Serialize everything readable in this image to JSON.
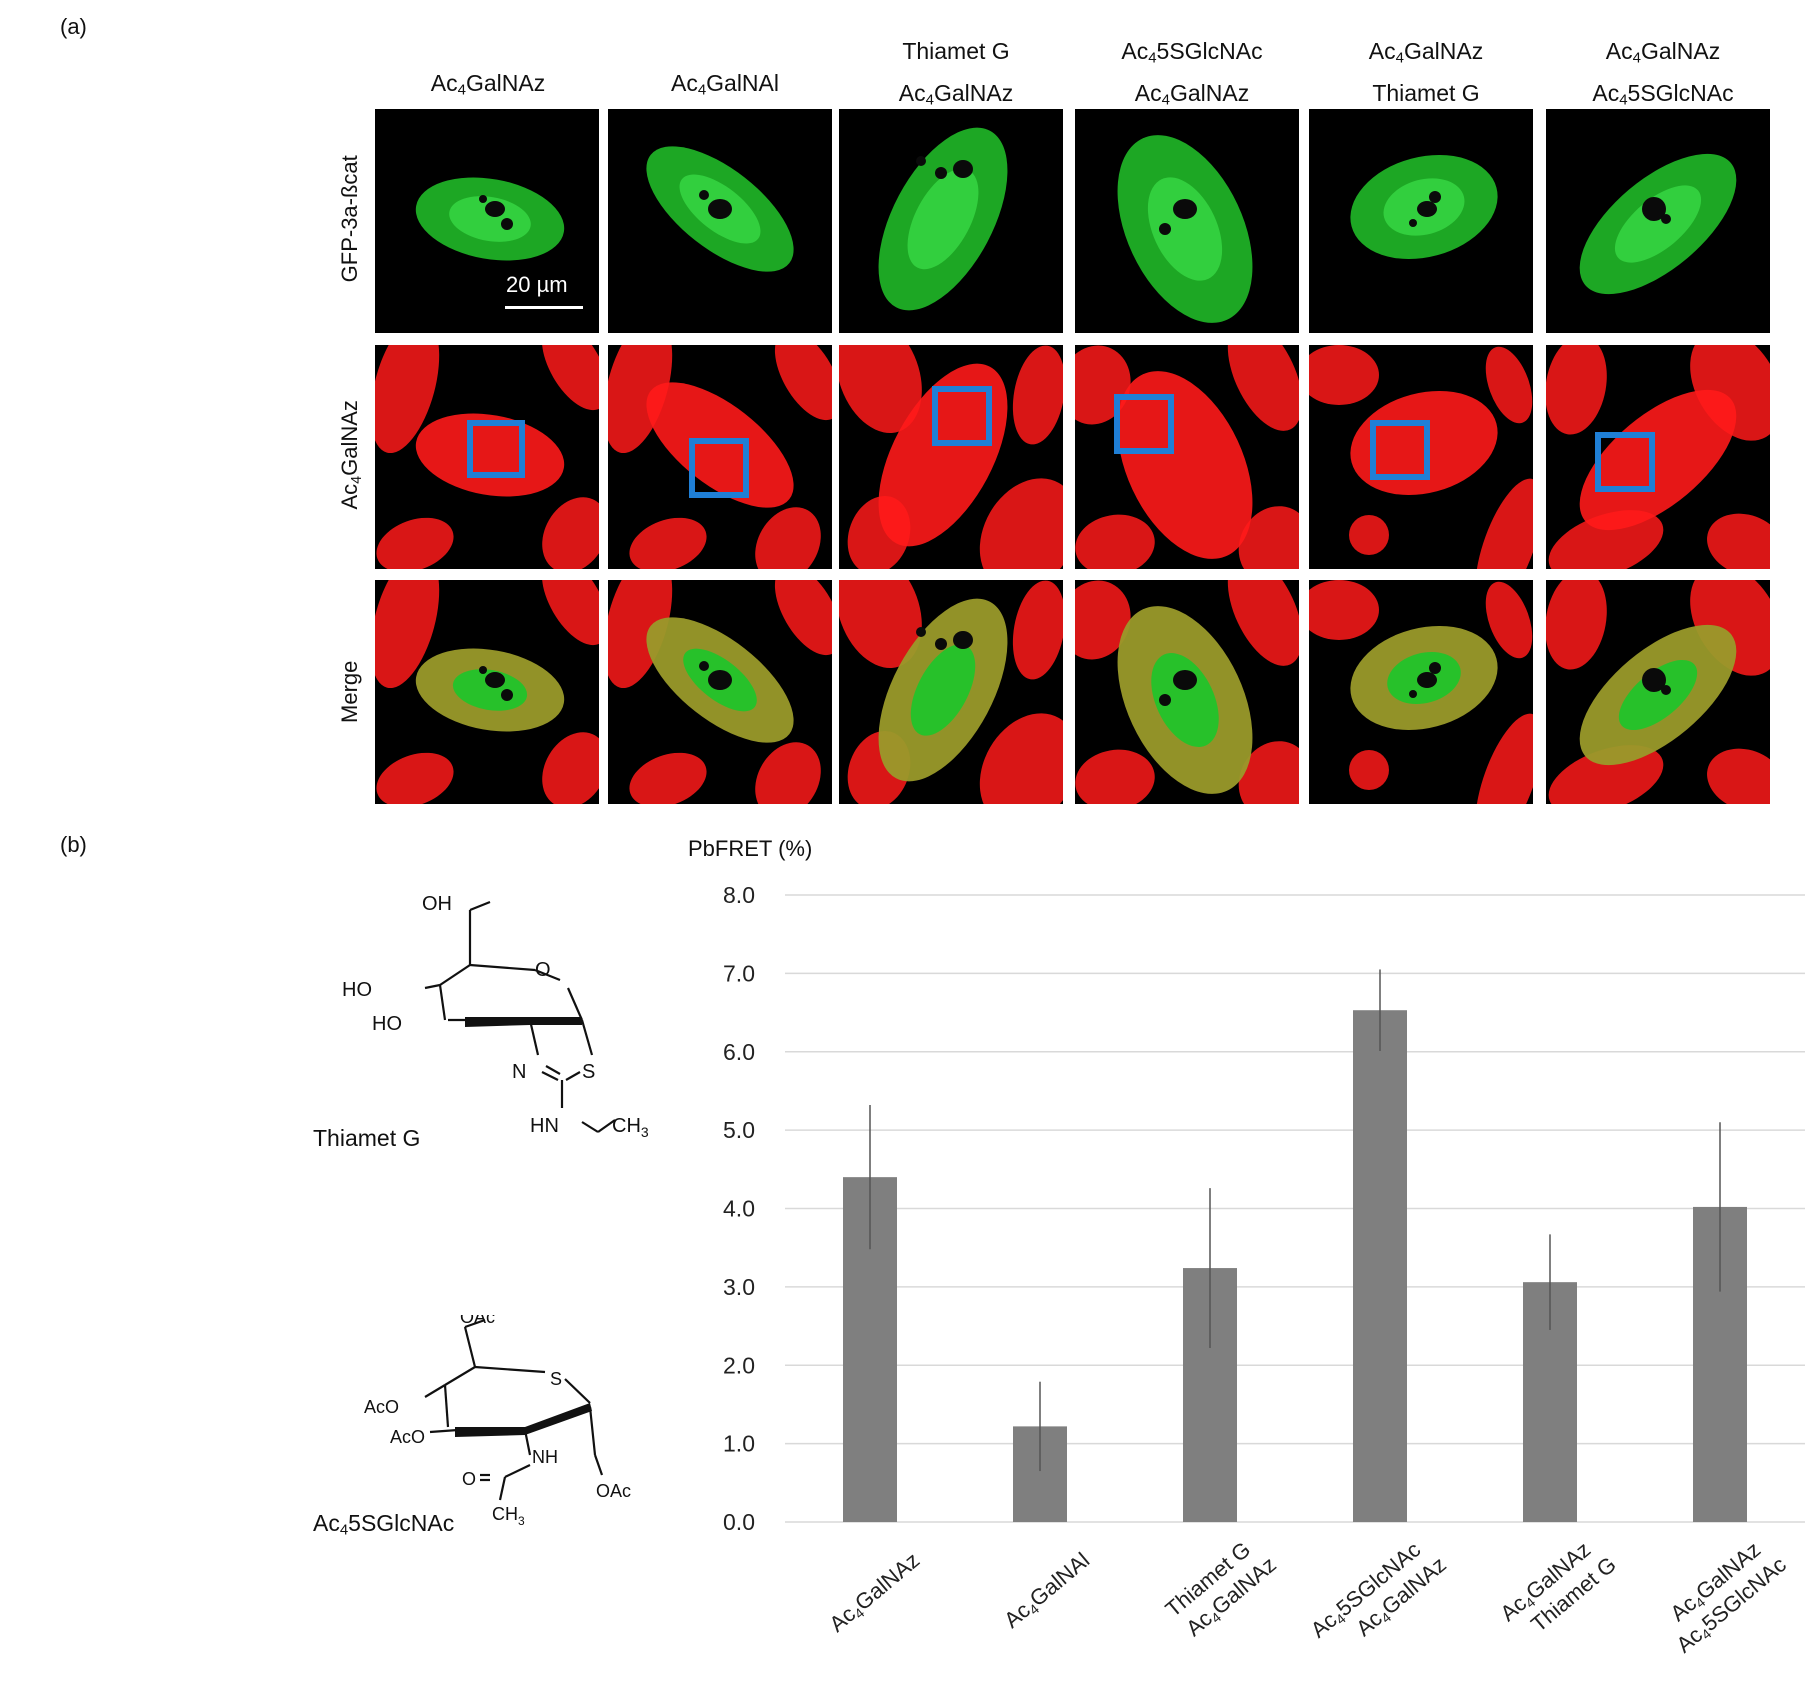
{
  "panels": {
    "a": "(a)",
    "b": "(b)"
  },
  "columns": [
    {
      "line1": "Ac",
      "line1_sub": "4",
      "line1_rest": "GalNAz",
      "line2": "",
      "line2_sub": "",
      "line2_rest": ""
    },
    {
      "line1": "Ac",
      "line1_sub": "4",
      "line1_rest": "GalNAl",
      "line2": "",
      "line2_sub": "",
      "line2_rest": ""
    },
    {
      "line1": "Thiamet G",
      "line1_sub": "",
      "line1_rest": "",
      "line2": "Ac",
      "line2_sub": "4",
      "line2_rest": "GalNAz"
    },
    {
      "line1": "Ac",
      "line1_sub": "4",
      "line1_rest": "5SGlcNAc",
      "line2": "Ac",
      "line2_sub": "4",
      "line2_rest": "GalNAz"
    },
    {
      "line1": "Ac",
      "line1_sub": "4",
      "line1_rest": "GalNAz",
      "line2": "Thiamet G",
      "line2_sub": "",
      "line2_rest": ""
    },
    {
      "line1": "Ac",
      "line1_sub": "4",
      "line1_rest": "GalNAz",
      "line2": "Ac",
      "line2_sub": "4",
      "line2_rest": "5SGlcNAc"
    }
  ],
  "rows": [
    {
      "label": "GFP-3a-ßcat",
      "label_sub": "",
      "label_rest": ""
    },
    {
      "label": "Ac",
      "label_sub": "4",
      "label_rest": "GalNAz"
    },
    {
      "label": "Merge",
      "label_sub": "",
      "label_rest": ""
    }
  ],
  "scale_bar": "20 µm",
  "structures": {
    "thiamet": {
      "name": "Thiamet G",
      "atoms": {
        "oh_top": "OH",
        "ho1": "HO",
        "ho2": "HO",
        "o_ring": "O",
        "n": "N",
        "s": "S",
        "hn": "HN",
        "ch": "CH",
        "ch_sub": "3"
      }
    },
    "ac5sglcnac": {
      "name": "Ac",
      "name_sub": "4",
      "name_rest": "5SGlcNAc",
      "atoms": {
        "oac_top": "OAc",
        "aco1": "AcO",
        "aco2": "AcO",
        "s": "S",
        "nh": "NH",
        "o": "O",
        "ch": "CH",
        "ch_sub": "3",
        "oac_bottom": "OAc"
      }
    }
  },
  "colors": {
    "bar": "#7f7f7f",
    "grid": "#d9d9d9",
    "gfp": "#22c42a",
    "label": "#ff1a1a",
    "roi": "#1f7fd6"
  },
  "chart_data": {
    "type": "bar",
    "ylabel": "PbFRET (%)",
    "ylim": [
      0,
      8
    ],
    "yticks": [
      "0.0",
      "1.0",
      "2.0",
      "3.0",
      "4.0",
      "5.0",
      "6.0",
      "7.0",
      "8.0"
    ],
    "categories": [
      {
        "l1": "Ac",
        "l1_sub": "4",
        "l1_rest": "GalNAz",
        "l2": "",
        "l2_sub": "",
        "l2_rest": ""
      },
      {
        "l1": "Ac",
        "l1_sub": "4",
        "l1_rest": "GalNAl",
        "l2": "",
        "l2_sub": "",
        "l2_rest": ""
      },
      {
        "l1": "Thiamet G",
        "l1_sub": "",
        "l1_rest": "",
        "l2": "Ac",
        "l2_sub": "4",
        "l2_rest": "GalNAz"
      },
      {
        "l1": "Ac",
        "l1_sub": "4",
        "l1_rest": "5SGlcNAc",
        "l2": "Ac",
        "l2_sub": "4",
        "l2_rest": "GalNAz"
      },
      {
        "l1": "Ac",
        "l1_sub": "4",
        "l1_rest": "GalNAz",
        "l2": "Thiamet G",
        "l2_sub": "",
        "l2_rest": ""
      },
      {
        "l1": "Ac",
        "l1_sub": "4",
        "l1_rest": "GalNAz",
        "l2": "Ac",
        "l2_sub": "4",
        "l2_rest": "5SGlcNAc"
      }
    ],
    "values": [
      4.4,
      1.22,
      3.24,
      6.53,
      3.06,
      4.02
    ],
    "errors": [
      0.92,
      0.57,
      1.02,
      0.52,
      0.61,
      1.08
    ],
    "grid": true
  }
}
